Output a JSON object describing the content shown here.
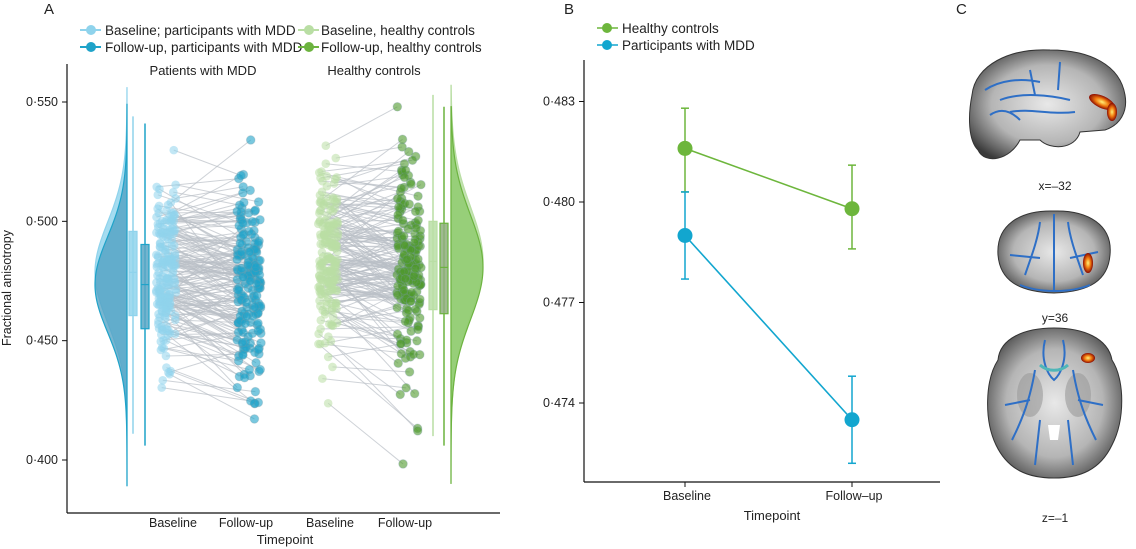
{
  "colors": {
    "mdd_baseline": "#8fd3ec",
    "mdd_followup": "#1fa3c9",
    "hc_baseline": "#b9dea4",
    "hc_followup": "#6cb33f",
    "pair_line": "#b9bfc6",
    "mdd_line_B": "#12a6cf",
    "hc_line_B": "#6db63c"
  },
  "chart_data": [
    {
      "panel": "A",
      "type": "scatter",
      "subtype": "raincloud paired",
      "ylabel": "Fractional anisotropy",
      "xlabel": "Timepoint",
      "ylim": [
        0.378,
        0.566
      ],
      "yticks": [
        0.4,
        0.45,
        0.5,
        0.55
      ],
      "ytick_labels": [
        "0·400",
        "0·450",
        "0·500",
        "0·550"
      ],
      "group_titles": [
        "Patients with MDD",
        "Healthy controls"
      ],
      "categories": [
        "Baseline",
        "Follow-up",
        "Baseline",
        "Follow-up"
      ],
      "legend": [
        {
          "label": "Baseline; participants with MDD",
          "color_key": "mdd_baseline"
        },
        {
          "label": "Follow-up, participants with MDD",
          "color_key": "mdd_followup"
        },
        {
          "label": "Baseline, healthy controls",
          "color_key": "hc_baseline"
        },
        {
          "label": "Follow-up, healthy controls",
          "color_key": "hc_followup"
        }
      ],
      "legend_position": "top",
      "boxplots": [
        {
          "series": "Baseline; participants with MDD",
          "min": 0.411,
          "q1": 0.4605,
          "median": 0.4786,
          "q3": 0.4958,
          "max": 0.544
        },
        {
          "series": "Follow-up, participants with MDD",
          "min": 0.406,
          "q1": 0.455,
          "median": 0.4735,
          "q3": 0.4903,
          "max": 0.541
        },
        {
          "series": "Baseline, healthy controls",
          "min": 0.41,
          "q1": 0.463,
          "median": 0.4832,
          "q3": 0.5,
          "max": 0.553
        },
        {
          "series": "Follow-up, healthy controls",
          "min": 0.406,
          "q1": 0.4613,
          "median": 0.4807,
          "q3": 0.4992,
          "max": 0.548
        }
      ],
      "point_range": {
        "mdd_baseline": [
          0.405,
          0.556
        ],
        "mdd_followup": [
          0.389,
          0.55
        ],
        "hc_baseline": [
          0.389,
          0.557
        ],
        "hc_followup": [
          0.39,
          0.548
        ]
      }
    },
    {
      "panel": "B",
      "type": "line",
      "xlabel": "Timepoint",
      "ylabel": "",
      "categories": [
        "Baseline",
        "Follow–up"
      ],
      "ylim": [
        0.4717,
        0.4842
      ],
      "yticks": [
        0.474,
        0.477,
        0.48,
        0.483
      ],
      "ytick_labels": [
        "0·474",
        "0·477",
        "0·480",
        "0·483"
      ],
      "legend_position": "top-left",
      "series": [
        {
          "name": "Healthy controls",
          "color_key": "hc_line_B",
          "values": [
            0.4816,
            0.4798
          ],
          "err_low": [
            0.4803,
            0.4786
          ],
          "err_high": [
            0.4828,
            0.4811
          ]
        },
        {
          "name": "Participants with MDD",
          "color_key": "mdd_line_B",
          "values": [
            0.479,
            0.4735
          ],
          "err_low": [
            0.4777,
            0.4722
          ],
          "err_high": [
            0.4803,
            0.4748
          ]
        }
      ]
    }
  ],
  "panel_labels": {
    "a": "A",
    "b": "B",
    "c": "C"
  },
  "panel_c": {
    "slices": [
      {
        "label": "x=–32",
        "view": "sagittal"
      },
      {
        "label": "y=36",
        "view": "coronal"
      },
      {
        "label": "z=–1",
        "view": "axial"
      }
    ]
  }
}
